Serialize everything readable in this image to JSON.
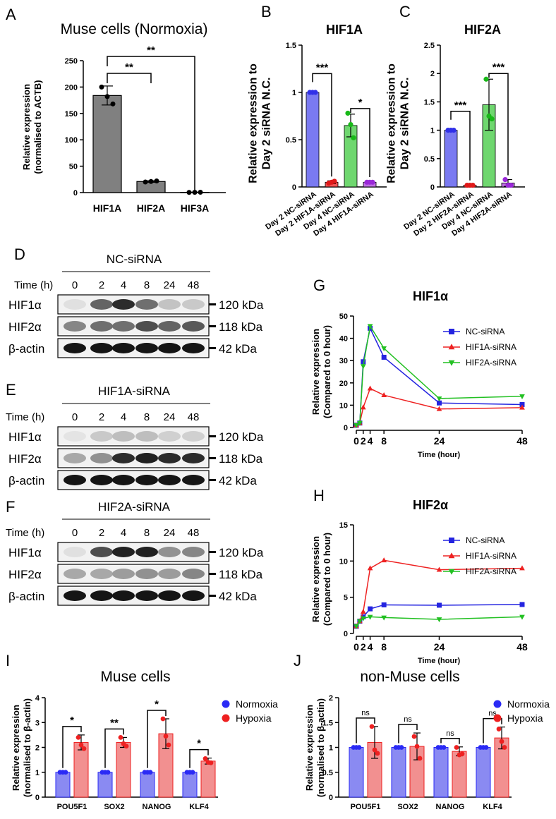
{
  "figure": {
    "panels": [
      "A",
      "B",
      "C",
      "D",
      "E",
      "F",
      "G",
      "H",
      "I",
      "J"
    ]
  },
  "chart_data": [
    {
      "id": "A",
      "type": "bar",
      "title": "Muse cells (Normoxia)",
      "ylabel": "Relative expression\n(normalised to ACTB)",
      "ylim": [
        0,
        250
      ],
      "yticks": [
        0,
        50,
        100,
        150,
        200,
        250
      ],
      "categories": [
        "HIF1A",
        "HIF2A",
        "HIF3A"
      ],
      "values": [
        184,
        21,
        0.5
      ],
      "err": [
        18,
        1.5,
        0.3
      ],
      "points": [
        [
          200,
          182,
          168
        ],
        [
          20,
          21,
          22
        ],
        [
          0.3,
          0.5,
          0.7
        ]
      ],
      "bar_color": "#808080",
      "comparisons": [
        {
          "from": 0,
          "to": 1,
          "label": "**"
        },
        {
          "from": 0,
          "to": 2,
          "label": "**"
        }
      ]
    },
    {
      "id": "B",
      "type": "bar",
      "title": "HIF1A",
      "ylabel": "Relative expression to\nDay 2 siRNA N.C.",
      "ylim": [
        0,
        1.5
      ],
      "yticks": [
        0,
        0.5,
        1.0,
        1.5
      ],
      "categories": [
        "Day 2 NC-siRNA",
        "Day 2 HIF1A-siRNA",
        "Day 4 NC-siRNA",
        "Day 4 HIF1A-siRNA"
      ],
      "values": [
        1.0,
        0.05,
        0.65,
        0.05
      ],
      "err": [
        0.005,
        0.015,
        0.12,
        0.01
      ],
      "points": [
        [
          1.0,
          1.0,
          1.0
        ],
        [
          0.04,
          0.05,
          0.06
        ],
        [
          0.78,
          0.66,
          0.52
        ],
        [
          0.05,
          0.05,
          0.05
        ]
      ],
      "colors": [
        "#6b6bf0",
        "#f04040",
        "#5fd35f",
        "#b85fe0"
      ],
      "comparisons": [
        {
          "from": 0,
          "to": 1,
          "label": "***"
        },
        {
          "from": 2,
          "to": 3,
          "label": "*"
        }
      ]
    },
    {
      "id": "C",
      "type": "bar",
      "title": "HIF2A",
      "ylabel": "Relative expression to\nDay 2 siRNA N.C.",
      "ylim": [
        0,
        2.5
      ],
      "yticks": [
        0,
        0.5,
        1.0,
        1.5,
        2.0,
        2.5
      ],
      "categories": [
        "Day 2 NC-siRNA",
        "Day 2 HIF2A-siRNA",
        "Day 4 NC-siRNA",
        "Day 4 HIF2A-siRNA"
      ],
      "values": [
        1.0,
        0.03,
        1.45,
        0.07
      ],
      "err": [
        0.01,
        0.01,
        0.45,
        0.06
      ],
      "points": [
        [
          1.0,
          1.0,
          1.0
        ],
        [
          0.03,
          0.03,
          0.03
        ],
        [
          1.9,
          1.25,
          1.2
        ],
        [
          0.13,
          0.03,
          0.03
        ]
      ],
      "colors": [
        "#6b6bf0",
        "#f04040",
        "#5fd35f",
        "#b85fe0"
      ],
      "comparisons": [
        {
          "from": 0,
          "to": 1,
          "label": "***"
        },
        {
          "from": 2,
          "to": 3,
          "label": "***"
        }
      ]
    },
    {
      "id": "G",
      "type": "line",
      "title": "HIF1α",
      "xlabel": "Time (hour)",
      "ylabel": "Relative expression\n(Compared to 0 hour)",
      "xlim": [
        0,
        48
      ],
      "ylim": [
        0,
        50
      ],
      "xticks": [
        0,
        2,
        4,
        8,
        24,
        48
      ],
      "yticks": [
        0,
        10,
        20,
        30,
        40,
        50
      ],
      "x": [
        0,
        1,
        2,
        4,
        8,
        24,
        48
      ],
      "series": [
        {
          "name": "NC-siRNA",
          "color": "#2424e0",
          "marker": "square",
          "values": [
            1,
            2,
            29.5,
            44.5,
            31.5,
            11,
            10.3
          ]
        },
        {
          "name": "HIF1A-siRNA",
          "color": "#ee2222",
          "marker": "triangle-up",
          "values": [
            1,
            2,
            9,
            17.5,
            14.5,
            8.3,
            8.9
          ]
        },
        {
          "name": "HIF2A-siRNA",
          "color": "#22c022",
          "marker": "triangle-down",
          "values": [
            1,
            2,
            27.5,
            45.5,
            35.5,
            13,
            14
          ]
        }
      ]
    },
    {
      "id": "H",
      "type": "line",
      "title": "HIF2α",
      "xlabel": "Time (hour)",
      "ylabel": "Relative expression\n(Compared to 0 hour)",
      "xlim": [
        0,
        48
      ],
      "ylim": [
        0,
        15
      ],
      "xticks": [
        0,
        2,
        4,
        8,
        24,
        48
      ],
      "yticks": [
        0,
        5,
        10,
        15
      ],
      "x": [
        0,
        1,
        2,
        4,
        8,
        24,
        48
      ],
      "series": [
        {
          "name": "NC-siRNA",
          "color": "#2424e0",
          "marker": "square",
          "values": [
            1,
            1.7,
            2.3,
            3.4,
            3.95,
            3.9,
            4
          ]
        },
        {
          "name": "HIF1A-siRNA",
          "color": "#ee2222",
          "marker": "triangle-up",
          "values": [
            1,
            1.7,
            3,
            9,
            10.1,
            8.8,
            9
          ]
        },
        {
          "name": "HIF2A-siRNA",
          "color": "#22c022",
          "marker": "triangle-down",
          "values": [
            1,
            1.7,
            2.1,
            2.3,
            2.2,
            1.95,
            2.3
          ]
        }
      ]
    },
    {
      "id": "I",
      "type": "bar",
      "title": "Muse cells",
      "ylabel": "Relative expression\n(normalised to β-actin)",
      "ylim": [
        0,
        4
      ],
      "yticks": [
        0,
        1,
        2,
        3,
        4
      ],
      "categories": [
        "POU5F1",
        "SOX2",
        "NANOG",
        "KLF4"
      ],
      "series": [
        {
          "name": "Normoxia",
          "color": "#2a2af5",
          "bar_color": "#8a8af2",
          "values": [
            1,
            1,
            1,
            1
          ],
          "err": [
            0,
            0,
            0,
            0
          ],
          "points": [
            [
              1,
              1,
              1
            ],
            [
              1,
              1,
              1
            ],
            [
              1,
              1,
              1
            ],
            [
              1,
              1,
              1
            ]
          ]
        },
        {
          "name": "Hypoxia",
          "color": "#ee2020",
          "bar_color": "#f29090",
          "values": [
            2.2,
            2.2,
            2.55,
            1.45
          ],
          "err": [
            0.3,
            0.2,
            0.6,
            0.12
          ],
          "points": [
            [
              2.4,
              2.1,
              1.95
            ],
            [
              2.4,
              2.15,
              2.05
            ],
            [
              3.15,
              2.45,
              2.1
            ],
            [
              1.55,
              1.4,
              1.38
            ]
          ]
        }
      ],
      "comparisons": [
        "*",
        "**",
        "*",
        "*"
      ]
    },
    {
      "id": "J",
      "type": "bar",
      "title": "non-Muse cells",
      "ylabel": "Relative expression\n(normalised to β-actin)",
      "ylim": [
        0,
        2.0
      ],
      "yticks": [
        0,
        0.5,
        1.0,
        1.5,
        2.0
      ],
      "categories": [
        "POU5F1",
        "SOX2",
        "NANOG",
        "KLF4"
      ],
      "series": [
        {
          "name": "Normoxia",
          "color": "#2a2af5",
          "bar_color": "#8a8af2",
          "values": [
            1,
            1,
            1,
            1
          ],
          "err": [
            0,
            0,
            0,
            0
          ],
          "points": [
            [
              1,
              1,
              1
            ],
            [
              1,
              1,
              1
            ],
            [
              1,
              1,
              1
            ],
            [
              1,
              1,
              1
            ]
          ]
        },
        {
          "name": "Hypoxia",
          "color": "#ee2020",
          "bar_color": "#f29090",
          "values": [
            1.1,
            1.02,
            0.92,
            1.19
          ],
          "err": [
            0.32,
            0.27,
            0.09,
            0.22
          ],
          "points": [
            [
              1.42,
              0.95,
              0.88
            ],
            [
              1.22,
              1.02,
              0.78
            ],
            [
              1.0,
              0.85,
              0.87
            ],
            [
              1.37,
              1.12,
              1.0
            ]
          ]
        }
      ],
      "comparisons": [
        "ns",
        "ns",
        "ns",
        "ns"
      ]
    }
  ],
  "blots": [
    {
      "id": "D",
      "group": "NC-siRNA",
      "time_label": "Time (h)",
      "times": [
        "0",
        "2",
        "4",
        "8",
        "24",
        "48"
      ],
      "rows": [
        {
          "name": "HIF1α",
          "kda": "120 kDa",
          "bands": [
            0.05,
            0.6,
            0.85,
            0.55,
            0.18,
            0.15
          ]
        },
        {
          "name": "HIF2α",
          "kda": "118 kDa",
          "bands": [
            0.45,
            0.55,
            0.55,
            0.7,
            0.6,
            0.65
          ]
        },
        {
          "name": "β-actin",
          "kda": "42 kDa",
          "bands": [
            0.95,
            0.95,
            0.95,
            0.95,
            0.95,
            0.95
          ]
        }
      ]
    },
    {
      "id": "E",
      "group": "HIF1A-siRNA",
      "time_label": "Time (h)",
      "times": [
        "0",
        "2",
        "4",
        "8",
        "24",
        "48"
      ],
      "rows": [
        {
          "name": "HIF1α",
          "kda": "120 kDa",
          "bands": [
            0.03,
            0.15,
            0.2,
            0.2,
            0.12,
            0.12
          ]
        },
        {
          "name": "HIF2α",
          "kda": "118 kDa",
          "bands": [
            0.3,
            0.4,
            0.85,
            0.9,
            0.85,
            0.85
          ]
        },
        {
          "name": "β-actin",
          "kda": "42 kDa",
          "bands": [
            0.95,
            0.95,
            0.95,
            0.95,
            0.95,
            0.95
          ]
        }
      ]
    },
    {
      "id": "F",
      "group": "HIF2A-siRNA",
      "time_label": "Time (h)",
      "times": [
        "0",
        "2",
        "4",
        "8",
        "24",
        "48"
      ],
      "rows": [
        {
          "name": "HIF1α",
          "kda": "120 kDa",
          "bands": [
            0.05,
            0.7,
            0.9,
            0.9,
            0.4,
            0.45
          ]
        },
        {
          "name": "HIF2α",
          "kda": "118 kDa",
          "bands": [
            0.3,
            0.3,
            0.35,
            0.4,
            0.35,
            0.45
          ]
        },
        {
          "name": "β-actin",
          "kda": "42 kDa",
          "bands": [
            0.95,
            0.95,
            0.95,
            0.95,
            0.95,
            0.95
          ]
        }
      ]
    }
  ]
}
